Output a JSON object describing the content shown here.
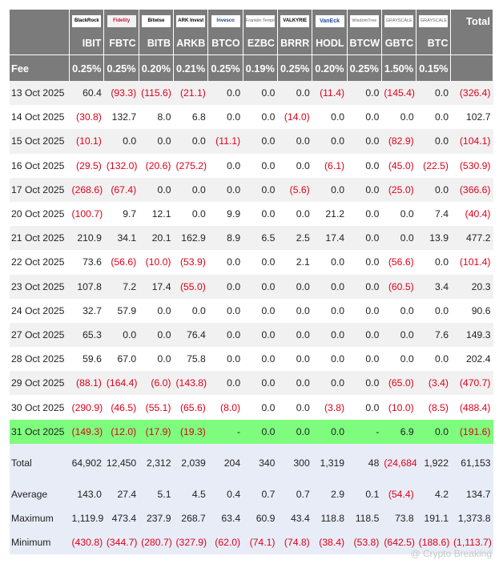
{
  "issuers": [
    "BlackRock",
    "Fidelity",
    "Bitwise",
    "ARK Invest",
    "Invesco",
    "Franklin Templeton",
    "VALKYRIE",
    "VanEck",
    "WisdomTree",
    "GRAYSCALE",
    "GRAYSCALE"
  ],
  "total_label": "Total",
  "tickers": [
    "IBIT",
    "FBTC",
    "BITB",
    "ARKB",
    "BTCO",
    "EZBC",
    "BRRR",
    "HODL",
    "BTCW",
    "GBTC",
    "BTC"
  ],
  "fee_label": "Fee",
  "fees": [
    "0.25%",
    "0.25%",
    "0.20%",
    "0.21%",
    "0.25%",
    "0.19%",
    "0.25%",
    "0.20%",
    "0.25%",
    "1.50%",
    "0.15%"
  ],
  "rows": [
    {
      "date": "13 Oct 2025",
      "v": [
        "60.4",
        "(93.3)",
        "(115.6)",
        "(21.1)",
        "0.0",
        "0.0",
        "0.0",
        "(11.4)",
        "0.0",
        "(145.4)",
        "0.0",
        "(326.4)"
      ]
    },
    {
      "date": "14 Oct 2025",
      "v": [
        "(30.8)",
        "132.7",
        "8.0",
        "6.8",
        "0.0",
        "0.0",
        "(14.0)",
        "0.0",
        "0.0",
        "0.0",
        "0.0",
        "102.7"
      ]
    },
    {
      "date": "15 Oct 2025",
      "v": [
        "(10.1)",
        "0.0",
        "0.0",
        "0.0",
        "(11.1)",
        "0.0",
        "0.0",
        "0.0",
        "0.0",
        "(82.9)",
        "0.0",
        "(104.1)"
      ]
    },
    {
      "date": "16 Oct 2025",
      "v": [
        "(29.5)",
        "(132.0)",
        "(20.6)",
        "(275.2)",
        "0.0",
        "0.0",
        "0.0",
        "(6.1)",
        "0.0",
        "(45.0)",
        "(22.5)",
        "(530.9)"
      ]
    },
    {
      "date": "17 Oct 2025",
      "v": [
        "(268.6)",
        "(67.4)",
        "0.0",
        "0.0",
        "0.0",
        "0.0",
        "(5.6)",
        "0.0",
        "0.0",
        "(25.0)",
        "0.0",
        "(366.6)"
      ]
    },
    {
      "date": "20 Oct 2025",
      "v": [
        "(100.7)",
        "9.7",
        "12.1",
        "0.0",
        "9.9",
        "0.0",
        "0.0",
        "21.2",
        "0.0",
        "0.0",
        "7.4",
        "(40.4)"
      ]
    },
    {
      "date": "21 Oct 2025",
      "v": [
        "210.9",
        "34.1",
        "20.1",
        "162.9",
        "8.9",
        "6.5",
        "2.5",
        "17.4",
        "0.0",
        "0.0",
        "13.9",
        "477.2"
      ]
    },
    {
      "date": "22 Oct 2025",
      "v": [
        "73.6",
        "(56.6)",
        "(10.0)",
        "(53.9)",
        "0.0",
        "0.0",
        "2.1",
        "0.0",
        "0.0",
        "(56.6)",
        "0.0",
        "(101.4)"
      ]
    },
    {
      "date": "23 Oct 2025",
      "v": [
        "107.8",
        "7.2",
        "17.4",
        "(55.0)",
        "0.0",
        "0.0",
        "0.0",
        "0.0",
        "0.0",
        "(60.5)",
        "3.4",
        "20.3"
      ]
    },
    {
      "date": "24 Oct 2025",
      "v": [
        "32.7",
        "57.9",
        "0.0",
        "0.0",
        "0.0",
        "0.0",
        "0.0",
        "0.0",
        "0.0",
        "0.0",
        "0.0",
        "90.6"
      ]
    },
    {
      "date": "27 Oct 2025",
      "v": [
        "65.3",
        "0.0",
        "0.0",
        "76.4",
        "0.0",
        "0.0",
        "0.0",
        "0.0",
        "0.0",
        "0.0",
        "7.6",
        "149.3"
      ]
    },
    {
      "date": "28 Oct 2025",
      "v": [
        "59.6",
        "67.0",
        "0.0",
        "75.8",
        "0.0",
        "0.0",
        "0.0",
        "0.0",
        "0.0",
        "0.0",
        "0.0",
        "202.4"
      ]
    },
    {
      "date": "29 Oct 2025",
      "v": [
        "(88.1)",
        "(164.4)",
        "(6.0)",
        "(143.8)",
        "0.0",
        "0.0",
        "0.0",
        "0.0",
        "0.0",
        "(65.0)",
        "(3.4)",
        "(470.7)"
      ]
    },
    {
      "date": "30 Oct 2025",
      "v": [
        "(290.9)",
        "(46.5)",
        "(55.1)",
        "(65.6)",
        "(8.0)",
        "0.0",
        "0.0",
        "(3.8)",
        "0.0",
        "(10.0)",
        "(8.5)",
        "(488.4)"
      ]
    },
    {
      "date": "31 Oct 2025",
      "v": [
        "(149.3)",
        "(12.0)",
        "(17.9)",
        "(19.3)",
        "-",
        "0.0",
        "0.0",
        "0.0",
        "-",
        "6.9",
        "0.0",
        "(191.6)"
      ],
      "highlight": true
    }
  ],
  "summary": [
    {
      "label": "Total",
      "v": [
        "64,902",
        "12,450",
        "2,312",
        "2,039",
        "204",
        "340",
        "300",
        "1,319",
        "48",
        "(24,684)",
        "1,922",
        "61,153"
      ]
    },
    {
      "label": "Average",
      "v": [
        "143.0",
        "27.4",
        "5.1",
        "4.5",
        "0.4",
        "0.7",
        "0.7",
        "2.9",
        "0.1",
        "(54.4)",
        "4.2",
        "134.7"
      ]
    },
    {
      "label": "Maximum",
      "v": [
        "1,119.9",
        "473.4",
        "237.9",
        "268.7",
        "63.4",
        "60.9",
        "43.4",
        "118.8",
        "118.5",
        "73.8",
        "191.1",
        "1,373.8"
      ]
    },
    {
      "label": "Minimum",
      "v": [
        "(430.8)",
        "(344.7)",
        "(280.7)",
        "(327.9)",
        "(62.0)",
        "(74.1)",
        "(74.8)",
        "(38.4)",
        "(53.8)",
        "(642.5)",
        "(188.6)",
        "(1,113.7)"
      ]
    }
  ],
  "watermark": "@ Crypto Breaking",
  "colors": {
    "header_bg": "#7b7b7b",
    "negative": "#e0001a",
    "highlight": "#7efc7e",
    "summary_bg": "#e8ecf7"
  }
}
